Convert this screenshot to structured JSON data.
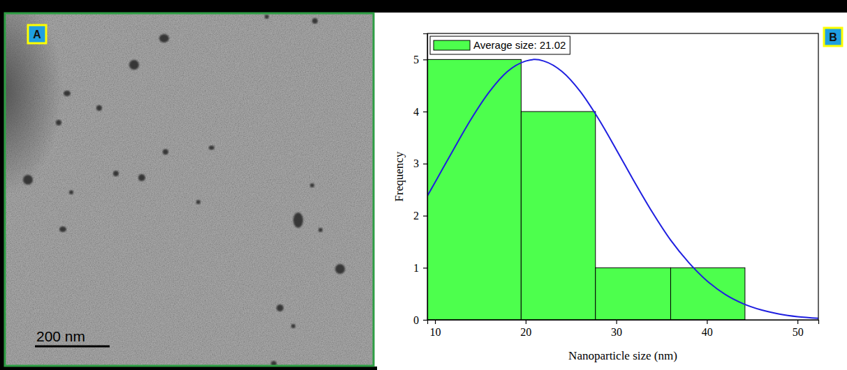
{
  "panel_labels": [
    "A",
    "B"
  ],
  "micrograph": {
    "scale_bar_label": "200 nm"
  },
  "chart_data": {
    "type": "histogram",
    "xlabel": "Nanoparticle size (nm)",
    "ylabel": "Frequency",
    "xlim": [
      9.15,
      52.3
    ],
    "ylim": [
      0,
      5.5
    ],
    "xticks": [
      10,
      20,
      30,
      40,
      50
    ],
    "yticks": [
      0,
      1,
      2,
      3,
      4,
      5
    ],
    "grid": false,
    "legend": "upper left",
    "series": [
      {
        "name": "Average size: 21.02",
        "type": "histogram",
        "color": "#4dff4d",
        "bins": [
          9.15,
          19.5,
          27.7,
          36.0,
          44.2
        ],
        "values": [
          5,
          4,
          1,
          1
        ]
      },
      {
        "type": "line",
        "color": "#1f1fe0",
        "x": [
          9.15,
          10,
          12,
          14,
          16,
          18,
          20,
          21,
          22,
          24,
          26,
          28,
          30,
          32,
          34,
          36,
          38,
          40,
          42,
          44,
          46,
          48,
          50,
          52.3
        ],
        "values": [
          2.38,
          2.64,
          3.26,
          3.86,
          4.38,
          4.77,
          4.97,
          5.0,
          4.97,
          4.77,
          4.39,
          3.87,
          3.27,
          2.65,
          2.06,
          1.53,
          1.1,
          0.75,
          0.49,
          0.31,
          0.19,
          0.11,
          0.06,
          0.03
        ]
      }
    ]
  }
}
